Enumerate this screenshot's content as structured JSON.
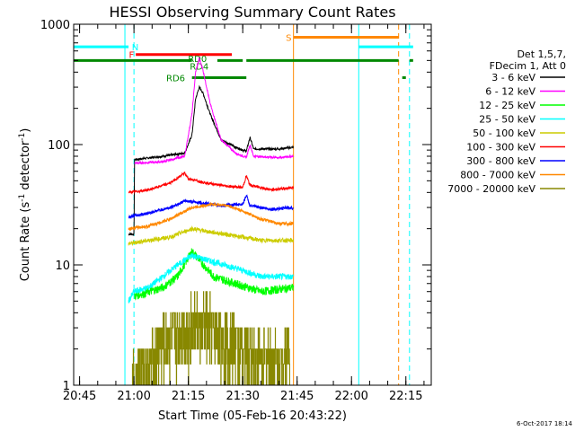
{
  "chart_data": {
    "type": "line",
    "title": "HESSI Observing Summary Count Rates",
    "xlabel": "Start Time (05-Feb-16 20:43:22)",
    "ylabel": "Count Rate (s⁻¹ detector⁻¹)",
    "ylabel_parts": {
      "pre": "Count Rate (s",
      "sup1": "-1",
      "mid": " detector",
      "sup2": "-1",
      "post": ")"
    },
    "y_scale": "log",
    "ylim": [
      1,
      1000
    ],
    "y_ticks": [
      1,
      10,
      100,
      1000
    ],
    "y_tick_labels": [
      "1",
      "10",
      "100",
      "1000"
    ],
    "xlim": [
      "20:43:22",
      "22:22:00"
    ],
    "x_ticks": [
      "20:45",
      "21:00",
      "21:15",
      "21:30",
      "21:45",
      "22:00",
      "22:15"
    ],
    "grid": false,
    "timestamp": "6-Oct-2017 18:14",
    "legend": {
      "placement": "right",
      "header": [
        "Det 1,5,7,",
        "FDecim 1, Att 0"
      ],
      "entries": [
        {
          "label": "3 - 6 keV",
          "color": "#000000"
        },
        {
          "label": "6 - 12 keV",
          "color": "#ff00ff"
        },
        {
          "label": "12 - 25 keV",
          "color": "#00ff00"
        },
        {
          "label": "25 - 50 keV",
          "color": "#00ffff"
        },
        {
          "label": "50 - 100 keV",
          "color": "#cccc00"
        },
        {
          "label": "100 - 300 keV",
          "color": "#ff0000"
        },
        {
          "label": "300 - 800 keV",
          "color": "#0000ff"
        },
        {
          "label": "800 - 7000 keV",
          "color": "#ff8800"
        },
        {
          "label": "7000 - 20000 keV",
          "color": "#888800"
        }
      ]
    },
    "series": [
      {
        "name": "3 - 6 keV",
        "color": "#000000",
        "noise": 0.02,
        "points": [
          [
            "20:58:30",
            18
          ],
          [
            "21:00",
            18
          ],
          [
            "21:00:10",
            75
          ],
          [
            "21:08",
            80
          ],
          [
            "21:14",
            85
          ],
          [
            "21:16",
            120
          ],
          [
            "21:17",
            240
          ],
          [
            "21:18",
            300
          ],
          [
            "21:19",
            270
          ],
          [
            "21:21",
            180
          ],
          [
            "21:24",
            110
          ],
          [
            "21:28",
            95
          ],
          [
            "21:31",
            88
          ],
          [
            "21:32",
            115
          ],
          [
            "21:33",
            92
          ],
          [
            "21:40",
            92
          ],
          [
            "21:44",
            95
          ]
        ]
      },
      {
        "name": "6 - 12 keV",
        "color": "#ff00ff",
        "noise": 0.02,
        "points": [
          [
            "21:00:10",
            70
          ],
          [
            "21:08",
            72
          ],
          [
            "21:14",
            80
          ],
          [
            "21:16",
            180
          ],
          [
            "21:17",
            400
          ],
          [
            "21:18",
            520
          ],
          [
            "21:19",
            420
          ],
          [
            "21:21",
            220
          ],
          [
            "21:24",
            110
          ],
          [
            "21:28",
            85
          ],
          [
            "21:31",
            78
          ],
          [
            "21:32",
            100
          ],
          [
            "21:33",
            80
          ],
          [
            "21:40",
            78
          ],
          [
            "21:44",
            80
          ]
        ]
      },
      {
        "name": "12 - 25 keV",
        "color": "#00ff00",
        "noise": 0.08,
        "points": [
          [
            "21:00:10",
            5.5
          ],
          [
            "21:08",
            6.5
          ],
          [
            "21:12",
            8
          ],
          [
            "21:16",
            13
          ],
          [
            "21:18",
            11
          ],
          [
            "21:22",
            8
          ],
          [
            "21:28",
            7
          ],
          [
            "21:35",
            6
          ],
          [
            "21:44",
            6.5
          ]
        ]
      },
      {
        "name": "25 - 50 keV",
        "color": "#00ffff",
        "noise": 0.06,
        "points": [
          [
            "20:58:30",
            5
          ],
          [
            "21:00",
            6
          ],
          [
            "21:04",
            6.5
          ],
          [
            "21:08",
            8
          ],
          [
            "21:12",
            10
          ],
          [
            "21:16",
            12
          ],
          [
            "21:20",
            11
          ],
          [
            "21:25",
            10
          ],
          [
            "21:30",
            9
          ],
          [
            "21:35",
            8
          ],
          [
            "21:44",
            8
          ]
        ]
      },
      {
        "name": "50 - 100 keV",
        "color": "#cccc00",
        "noise": 0.04,
        "points": [
          [
            "20:58:30",
            15
          ],
          [
            "21:04",
            16
          ],
          [
            "21:10",
            17
          ],
          [
            "21:16",
            20
          ],
          [
            "21:20",
            19
          ],
          [
            "21:25",
            18
          ],
          [
            "21:30",
            17
          ],
          [
            "21:35",
            16
          ],
          [
            "21:44",
            16
          ]
        ]
      },
      {
        "name": "100 - 300 keV",
        "color": "#ff0000",
        "noise": 0.025,
        "points": [
          [
            "20:58:30",
            40
          ],
          [
            "21:04",
            42
          ],
          [
            "21:10",
            48
          ],
          [
            "21:14",
            58
          ],
          [
            "21:15",
            52
          ],
          [
            "21:20",
            48
          ],
          [
            "21:26",
            45
          ],
          [
            "21:30",
            44
          ],
          [
            "21:31",
            55
          ],
          [
            "21:32",
            46
          ],
          [
            "21:38",
            42
          ],
          [
            "21:44",
            44
          ]
        ]
      },
      {
        "name": "300 - 800 keV",
        "color": "#0000ff",
        "noise": 0.03,
        "points": [
          [
            "20:58:30",
            25
          ],
          [
            "21:04",
            27
          ],
          [
            "21:10",
            30
          ],
          [
            "21:14",
            34
          ],
          [
            "21:18",
            33
          ],
          [
            "21:24",
            31
          ],
          [
            "21:30",
            32
          ],
          [
            "21:31",
            38
          ],
          [
            "21:32",
            31
          ],
          [
            "21:38",
            29
          ],
          [
            "21:44",
            30
          ]
        ]
      },
      {
        "name": "800 - 7000 keV",
        "color": "#ff8800",
        "noise": 0.03,
        "points": [
          [
            "20:58:30",
            20
          ],
          [
            "21:04",
            21
          ],
          [
            "21:10",
            24
          ],
          [
            "21:16",
            30
          ],
          [
            "21:22",
            32
          ],
          [
            "21:26",
            31
          ],
          [
            "21:30",
            28
          ],
          [
            "21:35",
            24
          ],
          [
            "21:40",
            22
          ],
          [
            "21:44",
            22
          ]
        ]
      },
      {
        "name": "7000 - 20000 keV",
        "color": "#888800",
        "noise": 0.0,
        "points": [
          [
            "20:59:30",
            1
          ],
          [
            "21:05",
            1.5
          ],
          [
            "21:08",
            2
          ],
          [
            "21:12",
            2.5
          ],
          [
            "21:16",
            3
          ],
          [
            "21:20",
            3
          ],
          [
            "21:24",
            2.5
          ],
          [
            "21:28",
            2
          ],
          [
            "21:32",
            1.8
          ],
          [
            "21:36",
            1.6
          ],
          [
            "21:40",
            1.5
          ],
          [
            "21:43",
            2
          ]
        ]
      }
    ],
    "annotations": [
      {
        "label": "N",
        "color": "#00ffff",
        "y": 650,
        "x_label": "21:00:20"
      },
      {
        "label": "F",
        "color": "#ff0000",
        "y": 560,
        "x_label": "20:59:20"
      },
      {
        "label": "RD0",
        "color": "#008800",
        "y": 520,
        "x_label": "21:17:30"
      },
      {
        "label": "RD4",
        "color": "#008800",
        "y": 450,
        "x_label": "21:18:00"
      },
      {
        "label": "RD6",
        "color": "#008800",
        "y": 360,
        "x_label": "21:11:30"
      },
      {
        "label": "S",
        "color": "#ff8800",
        "y": 780,
        "x_label": "21:42:40"
      }
    ],
    "bars": [
      {
        "color": "#00ffff",
        "y": 650,
        "segments": [
          [
            "20:43:22",
            "20:58:30"
          ],
          [
            "22:02",
            "22:17"
          ]
        ]
      },
      {
        "color": "#ff0000",
        "y": 560,
        "segments": [
          [
            "21:00:30",
            "21:27"
          ]
        ]
      },
      {
        "color": "#008800",
        "y": 500,
        "segments": [
          [
            "20:43:22",
            "21:16"
          ],
          [
            "21:23",
            "21:30"
          ],
          [
            "21:31",
            "22:13"
          ],
          [
            "22:16",
            "22:17"
          ]
        ]
      },
      {
        "color": "#008800",
        "y": 360,
        "segments": [
          [
            "21:16",
            "21:31"
          ],
          [
            "22:14",
            "22:15"
          ]
        ]
      },
      {
        "color": "#ff8800",
        "y": 780,
        "segments": [
          [
            "21:44",
            "22:13"
          ]
        ]
      }
    ],
    "vlines": [
      {
        "x": "20:57:30",
        "color": "#00ffff",
        "dash": false
      },
      {
        "x": "21:00",
        "color": "#00ffff",
        "dash": true
      },
      {
        "x": "21:44",
        "color": "#ff8800",
        "dash": false
      },
      {
        "x": "22:02",
        "color": "#00ffff",
        "dash": false
      },
      {
        "x": "22:13",
        "color": "#ff8800",
        "dash": true
      },
      {
        "x": "22:16",
        "color": "#00ffff",
        "dash": true
      }
    ]
  }
}
